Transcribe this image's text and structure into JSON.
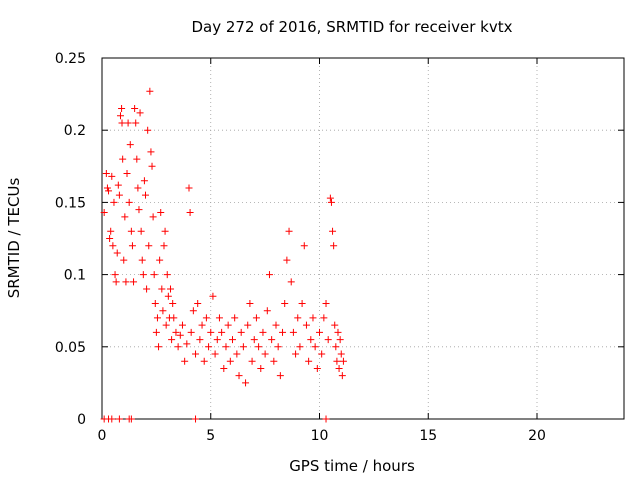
{
  "chart_data": {
    "type": "scatter",
    "title": "Day 272 of 2016, SRMTID for receiver kvtx",
    "xlabel": "GPS time / hours",
    "ylabel": "SRMTID / TECUs",
    "xlim": [
      0,
      24
    ],
    "ylim": [
      0,
      0.25
    ],
    "xticks": [
      "0",
      "5",
      "10",
      "15",
      "20"
    ],
    "yticks": [
      "0",
      "0.05",
      "0.1",
      "0.15",
      "0.2",
      "0.25"
    ],
    "grid": true,
    "marker": "+",
    "series": [
      {
        "color": "#ff0000",
        "points": [
          [
            0.1,
            0.143
          ],
          [
            0.2,
            0.17
          ],
          [
            0.25,
            0.16
          ],
          [
            0.3,
            0.158
          ],
          [
            0.35,
            0.125
          ],
          [
            0.4,
            0.13
          ],
          [
            0.45,
            0.168
          ],
          [
            0.5,
            0.12
          ],
          [
            0.55,
            0.15
          ],
          [
            0.6,
            0.1
          ],
          [
            0.65,
            0.095
          ],
          [
            0.7,
            0.115
          ],
          [
            0.75,
            0.162
          ],
          [
            0.8,
            0.155
          ],
          [
            0.85,
            0.21
          ],
          [
            0.9,
            0.215
          ],
          [
            0.92,
            0.205
          ],
          [
            0.95,
            0.18
          ],
          [
            1.0,
            0.11
          ],
          [
            1.05,
            0.14
          ],
          [
            1.1,
            0.095
          ],
          [
            1.15,
            0.17
          ],
          [
            1.2,
            0.205
          ],
          [
            1.25,
            0.15
          ],
          [
            1.3,
            0.19
          ],
          [
            1.35,
            0.13
          ],
          [
            1.4,
            0.12
          ],
          [
            1.45,
            0.095
          ],
          [
            1.5,
            0.215
          ],
          [
            1.55,
            0.205
          ],
          [
            1.6,
            0.18
          ],
          [
            1.65,
            0.16
          ],
          [
            1.7,
            0.145
          ],
          [
            1.75,
            0.212
          ],
          [
            1.8,
            0.13
          ],
          [
            1.85,
            0.11
          ],
          [
            1.9,
            0.1
          ],
          [
            1.95,
            0.165
          ],
          [
            2.0,
            0.155
          ],
          [
            2.05,
            0.09
          ],
          [
            2.1,
            0.2
          ],
          [
            2.15,
            0.12
          ],
          [
            2.2,
            0.227
          ],
          [
            2.25,
            0.185
          ],
          [
            2.3,
            0.175
          ],
          [
            2.35,
            0.14
          ],
          [
            2.4,
            0.1
          ],
          [
            2.45,
            0.08
          ],
          [
            2.5,
            0.06
          ],
          [
            2.55,
            0.07
          ],
          [
            2.6,
            0.05
          ],
          [
            2.65,
            0.11
          ],
          [
            2.7,
            0.143
          ],
          [
            2.75,
            0.09
          ],
          [
            2.8,
            0.075
          ],
          [
            2.85,
            0.12
          ],
          [
            2.9,
            0.13
          ],
          [
            2.95,
            0.065
          ],
          [
            3.0,
            0.1
          ],
          [
            3.05,
            0.085
          ],
          [
            3.1,
            0.07
          ],
          [
            3.15,
            0.09
          ],
          [
            3.2,
            0.055
          ],
          [
            3.25,
            0.08
          ],
          [
            3.3,
            0.07
          ],
          [
            3.4,
            0.06
          ],
          [
            3.5,
            0.05
          ],
          [
            3.6,
            0.058
          ],
          [
            3.7,
            0.065
          ],
          [
            3.8,
            0.04
          ],
          [
            3.9,
            0.052
          ],
          [
            4.0,
            0.16
          ],
          [
            4.05,
            0.143
          ],
          [
            4.1,
            0.06
          ],
          [
            4.2,
            0.075
          ],
          [
            4.3,
            0.045
          ],
          [
            4.4,
            0.08
          ],
          [
            4.5,
            0.055
          ],
          [
            4.6,
            0.065
          ],
          [
            4.7,
            0.04
          ],
          [
            4.8,
            0.07
          ],
          [
            4.9,
            0.05
          ],
          [
            5.0,
            0.06
          ],
          [
            5.1,
            0.085
          ],
          [
            5.2,
            0.045
          ],
          [
            5.3,
            0.055
          ],
          [
            5.4,
            0.07
          ],
          [
            5.5,
            0.06
          ],
          [
            5.6,
            0.035
          ],
          [
            5.7,
            0.05
          ],
          [
            5.8,
            0.065
          ],
          [
            5.9,
            0.04
          ],
          [
            6.0,
            0.055
          ],
          [
            6.1,
            0.07
          ],
          [
            6.2,
            0.045
          ],
          [
            6.3,
            0.03
          ],
          [
            6.4,
            0.06
          ],
          [
            6.5,
            0.05
          ],
          [
            6.6,
            0.025
          ],
          [
            6.7,
            0.065
          ],
          [
            6.8,
            0.08
          ],
          [
            6.9,
            0.04
          ],
          [
            7.0,
            0.055
          ],
          [
            7.1,
            0.07
          ],
          [
            7.2,
            0.05
          ],
          [
            7.3,
            0.035
          ],
          [
            7.4,
            0.06
          ],
          [
            7.5,
            0.045
          ],
          [
            7.6,
            0.075
          ],
          [
            7.7,
            0.1
          ],
          [
            7.8,
            0.055
          ],
          [
            7.9,
            0.04
          ],
          [
            8.0,
            0.065
          ],
          [
            8.1,
            0.05
          ],
          [
            8.2,
            0.03
          ],
          [
            8.3,
            0.06
          ],
          [
            8.4,
            0.08
          ],
          [
            8.5,
            0.11
          ],
          [
            8.6,
            0.13
          ],
          [
            8.7,
            0.095
          ],
          [
            8.8,
            0.06
          ],
          [
            8.9,
            0.045
          ],
          [
            9.0,
            0.07
          ],
          [
            9.1,
            0.05
          ],
          [
            9.2,
            0.08
          ],
          [
            9.3,
            0.12
          ],
          [
            9.4,
            0.065
          ],
          [
            9.5,
            0.04
          ],
          [
            9.6,
            0.055
          ],
          [
            9.7,
            0.07
          ],
          [
            9.8,
            0.05
          ],
          [
            9.9,
            0.035
          ],
          [
            10.0,
            0.06
          ],
          [
            10.1,
            0.045
          ],
          [
            10.2,
            0.07
          ],
          [
            10.3,
            0.08
          ],
          [
            10.4,
            0.055
          ],
          [
            10.5,
            0.153
          ],
          [
            10.55,
            0.15
          ],
          [
            10.6,
            0.13
          ],
          [
            10.65,
            0.12
          ],
          [
            10.7,
            0.065
          ],
          [
            10.75,
            0.05
          ],
          [
            10.8,
            0.04
          ],
          [
            10.85,
            0.06
          ],
          [
            10.9,
            0.035
          ],
          [
            10.95,
            0.055
          ],
          [
            11.0,
            0.045
          ],
          [
            11.05,
            0.03
          ],
          [
            11.1,
            0.04
          ]
        ]
      },
      {
        "color": "#ff0000",
        "points": [
          [
            0.1,
            0
          ],
          [
            0.3,
            0
          ],
          [
            0.45,
            0
          ],
          [
            0.8,
            0
          ],
          [
            1.25,
            0
          ],
          [
            1.35,
            0
          ],
          [
            4.3,
            0
          ],
          [
            10.3,
            0
          ]
        ]
      }
    ]
  }
}
